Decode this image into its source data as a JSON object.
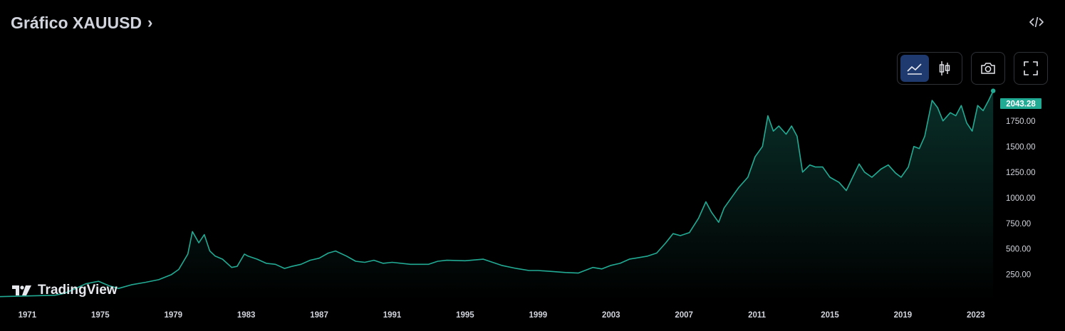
{
  "header": {
    "title": "Gráfico XAUUSD",
    "chevron": "›"
  },
  "toolbar": {
    "icons": [
      "area-chart-icon",
      "candlestick-icon",
      "camera-icon",
      "fullscreen-icon"
    ],
    "active": "area-chart-icon"
  },
  "embed_icon": "code-icon",
  "logo": {
    "text": "TradingView"
  },
  "colors": {
    "line": "#22ab94",
    "fill_top": "rgba(34,171,148,0.28)",
    "fill_bottom": "rgba(34,171,148,0.0)",
    "price_tag": "#22ab94",
    "axis_text": "#d1d4dc",
    "active_btn": "#1e3a6e"
  },
  "chart_data": {
    "type": "area",
    "title": "",
    "xlabel": "",
    "ylabel": "",
    "last_price": "2043.28",
    "x_tick_labels": [
      "1971",
      "1975",
      "1979",
      "1983",
      "1987",
      "1991",
      "1995",
      "1999",
      "2003",
      "2007",
      "2011",
      "2015",
      "2019",
      "2023"
    ],
    "y_tick_labels": [
      "1750.00",
      "1500.00",
      "1250.00",
      "1000.00",
      "750.00",
      "500.00",
      "250.00"
    ],
    "x_range": [
      1969.5,
      2024.1
    ],
    "y_range": [
      -2,
      2110
    ],
    "grid": false,
    "series": [
      {
        "x": [
          1969.5,
          1972.5,
          1973.0,
          1973.6,
          1974.2,
          1974.9,
          1975.5,
          1976.0,
          1976.7,
          1977.5,
          1978.2,
          1978.9,
          1979.3,
          1979.8,
          1980.05,
          1980.4,
          1980.7,
          1981.0,
          1981.3,
          1981.7,
          1982.2,
          1982.5,
          1982.9,
          1983.1,
          1983.6,
          1984.1,
          1984.6,
          1985.1,
          1985.5,
          1986.0,
          1986.5,
          1987.0,
          1987.5,
          1987.9,
          1988.5,
          1989.0,
          1989.5,
          1990.0,
          1990.5,
          1991.0,
          1992.0,
          1993.0,
          1993.5,
          1994.0,
          1995.0,
          1996.0,
          1997.0,
          1997.8,
          1998.5,
          1999.0,
          1999.8,
          2000.5,
          2001.2,
          2002.0,
          2002.5,
          2003.0,
          2003.5,
          2004.0,
          2005.0,
          2005.5,
          2006.0,
          2006.4,
          2006.8,
          2007.3,
          2007.8,
          2008.2,
          2008.5,
          2008.9,
          2009.2,
          2009.6,
          2010.0,
          2010.5,
          2010.9,
          2011.3,
          2011.6,
          2011.9,
          2012.2,
          2012.6,
          2012.9,
          2013.2,
          2013.5,
          2013.9,
          2014.2,
          2014.6,
          2015.0,
          2015.5,
          2015.9,
          2016.3,
          2016.6,
          2016.9,
          2017.3,
          2017.8,
          2018.2,
          2018.6,
          2018.9,
          2019.3,
          2019.6,
          2019.9,
          2020.2,
          2020.6,
          2020.9,
          2021.2,
          2021.6,
          2021.9,
          2022.2,
          2022.5,
          2022.8,
          2023.1,
          2023.4,
          2023.7,
          2023.95
        ],
        "y": [
          35,
          48,
          65,
          110,
          160,
          185,
          140,
          115,
          150,
          175,
          200,
          250,
          300,
          450,
          670,
          560,
          640,
          480,
          430,
          400,
          320,
          330,
          450,
          430,
          400,
          360,
          350,
          310,
          330,
          350,
          390,
          410,
          460,
          480,
          430,
          380,
          370,
          390,
          360,
          370,
          350,
          350,
          380,
          390,
          385,
          400,
          340,
          310,
          290,
          290,
          280,
          270,
          265,
          320,
          305,
          340,
          360,
          400,
          430,
          460,
          560,
          650,
          630,
          660,
          800,
          960,
          860,
          760,
          900,
          1000,
          1100,
          1200,
          1400,
          1500,
          1800,
          1650,
          1700,
          1620,
          1700,
          1600,
          1250,
          1320,
          1300,
          1300,
          1200,
          1150,
          1070,
          1220,
          1330,
          1250,
          1200,
          1280,
          1320,
          1240,
          1200,
          1300,
          1500,
          1480,
          1600,
          1950,
          1880,
          1750,
          1830,
          1800,
          1900,
          1730,
          1650,
          1900,
          1850,
          1950,
          2043.28
        ],
        "name": ""
      }
    ]
  }
}
